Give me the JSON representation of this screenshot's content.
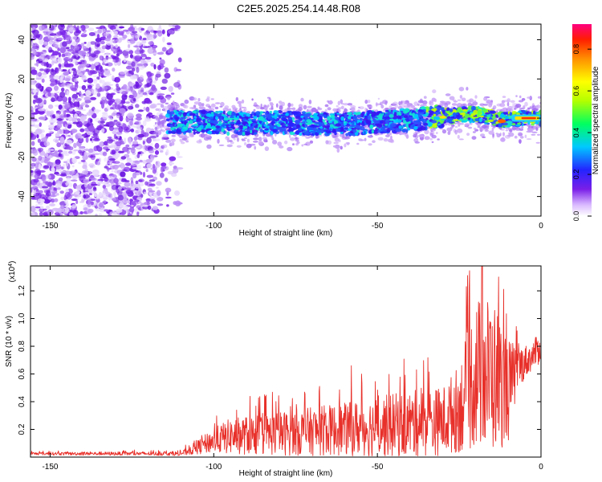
{
  "title": "C2E5.2025.254.14.48.R08",
  "colors": {
    "snr_line": "#e8302a",
    "axis": "#000000"
  },
  "chart_data": [
    {
      "type": "heatmap",
      "xlabel": "Height of straight line (km)",
      "ylabel": "Frequency (Hz)",
      "xlim": [
        -156,
        0
      ],
      "ylim": [
        -50,
        48
      ],
      "x_ticks": [
        -150,
        -100,
        -50,
        0
      ],
      "x_tick_labels": [
        "-150",
        "-100",
        "-50",
        "0"
      ],
      "y_ticks": [
        -40,
        -20,
        0,
        20,
        40
      ],
      "y_tick_labels": [
        "-40",
        "-20",
        "0",
        "20",
        "40"
      ],
      "colorbar": {
        "label": "Normalized spectral amplitude",
        "range": [
          0,
          0.92
        ],
        "ticks": [
          0,
          0.2,
          0.4,
          0.6,
          0.8
        ],
        "tick_labels": [
          "0.0",
          "0.2",
          "0.4",
          "0.6",
          "0.8"
        ]
      },
      "ridge": [
        {
          "x": -112,
          "y": -2
        },
        {
          "x": -100,
          "y": -2
        },
        {
          "x": -90,
          "y": -3
        },
        {
          "x": -80,
          "y": -2
        },
        {
          "x": -70,
          "y": -3
        },
        {
          "x": -60,
          "y": -3
        },
        {
          "x": -50,
          "y": -2
        },
        {
          "x": -40,
          "y": -1
        },
        {
          "x": -30,
          "y": 1
        },
        {
          "x": -20,
          "y": 2
        },
        {
          "x": -12,
          "y": -1
        },
        {
          "x": -5,
          "y": 0
        },
        {
          "x": 0,
          "y": 0
        }
      ],
      "grid": false
    },
    {
      "type": "line",
      "xlabel": "Height of straight line (km)",
      "ylabel": "SNR (10 * v/v)",
      "y_multiplier_label": "(x10",
      "y_multiplier_exp": "4",
      "y_multiplier_close": ")",
      "xlim": [
        -156,
        0
      ],
      "ylim": [
        0,
        13800
      ],
      "x_ticks": [
        -150,
        -100,
        -50,
        0
      ],
      "x_tick_labels": [
        "-150",
        "-100",
        "-50",
        "0"
      ],
      "y_ticks": [
        2000,
        4000,
        6000,
        8000,
        10000,
        12000
      ],
      "y_tick_labels": [
        "0.2",
        "0.4",
        "0.6",
        "0.8",
        "1.0",
        "1.2"
      ],
      "envelope": [
        {
          "x": -156,
          "mean": 250,
          "amp": 100
        },
        {
          "x": -110,
          "mean": 250,
          "amp": 150
        },
        {
          "x": -105,
          "mean": 700,
          "amp": 500
        },
        {
          "x": -100,
          "mean": 1200,
          "amp": 900
        },
        {
          "x": -95,
          "mean": 1500,
          "amp": 1300
        },
        {
          "x": -80,
          "mean": 1700,
          "amp": 1600
        },
        {
          "x": -60,
          "mean": 2000,
          "amp": 1900
        },
        {
          "x": -50,
          "mean": 2200,
          "amp": 2200
        },
        {
          "x": -40,
          "mean": 2400,
          "amp": 2400
        },
        {
          "x": -30,
          "mean": 2600,
          "amp": 2500
        },
        {
          "x": -25,
          "mean": 3500,
          "amp": 3200
        },
        {
          "x": -20,
          "mean": 6000,
          "amp": 5500
        },
        {
          "x": -15,
          "mean": 6000,
          "amp": 5800
        },
        {
          "x": -10,
          "mean": 4800,
          "amp": 3800
        },
        {
          "x": -7,
          "mean": 6500,
          "amp": 1500
        },
        {
          "x": -3,
          "mean": 7200,
          "amp": 1000
        },
        {
          "x": 0,
          "mean": 8000,
          "amp": 1200
        }
      ],
      "peaks": [
        {
          "x": -18,
          "y": 13800
        },
        {
          "x": -13,
          "y": 13000
        },
        {
          "x": -38,
          "y": 6300
        },
        {
          "x": -58,
          "y": 6600
        },
        {
          "x": -93,
          "y": 3400
        }
      ],
      "grid": false
    }
  ]
}
